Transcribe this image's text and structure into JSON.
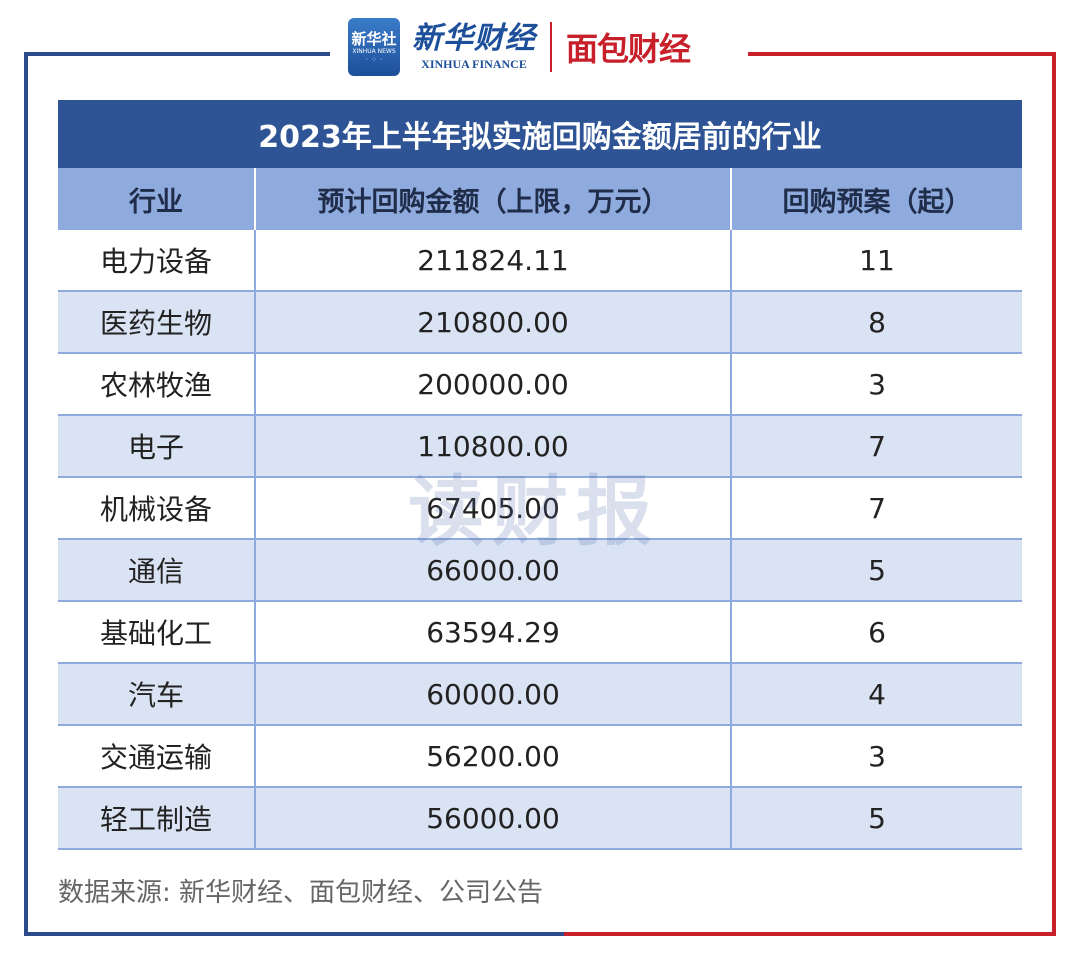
{
  "logos": {
    "xinhua_badge_text": "新华社",
    "xinhua_badge_sub": "XINHUA NEWS",
    "xinhua_finance_cn": "新华财经",
    "xinhua_finance_en": "XINHUA FINANCE",
    "mianbao": "面包财经"
  },
  "chart_data": {
    "type": "table",
    "title": "2023年上半年拟实施回购金额居前的行业",
    "columns": [
      "行业",
      "预计回购金额（上限，万元）",
      "回购预案（起）"
    ],
    "rows": [
      [
        "电力设备",
        "211824.11",
        "11"
      ],
      [
        "医药生物",
        "210800.00",
        "8"
      ],
      [
        "农林牧渔",
        "200000.00",
        "3"
      ],
      [
        "电子",
        "110800.00",
        "7"
      ],
      [
        "机械设备",
        "67405.00",
        "7"
      ],
      [
        "通信",
        "66000.00",
        "5"
      ],
      [
        "基础化工",
        "63594.29",
        "6"
      ],
      [
        "汽车",
        "60000.00",
        "4"
      ],
      [
        "交通运输",
        "56200.00",
        "3"
      ],
      [
        "轻工制造",
        "56000.00",
        "5"
      ]
    ]
  },
  "watermark": "读财报",
  "source": "数据来源: 新华财经、面包财经、公司公告",
  "colors": {
    "title_bg": "#2f5496",
    "header_bg": "#8faadc",
    "stripe_bg": "#dae3f3",
    "frame_blue": "#2d4a8a",
    "frame_red": "#c8202a"
  }
}
